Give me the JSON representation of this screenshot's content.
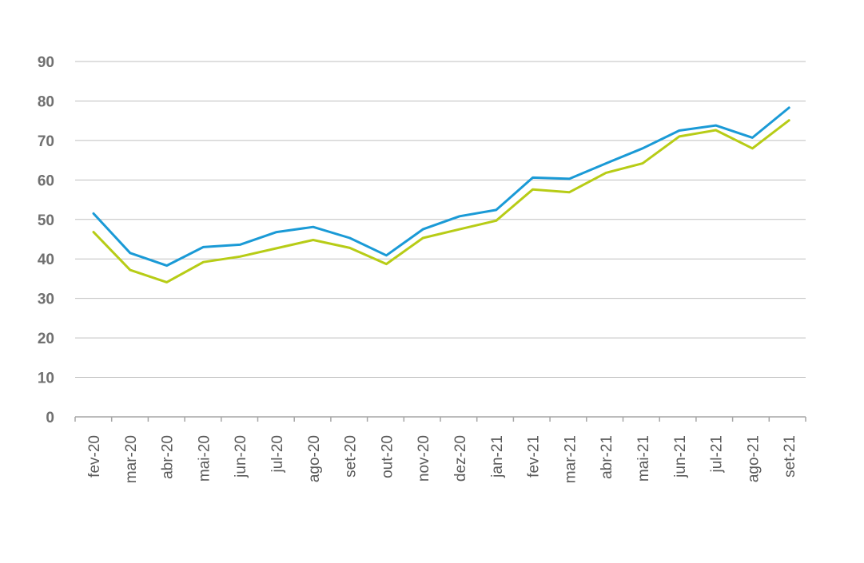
{
  "chart_data": {
    "type": "line",
    "title": "",
    "xlabel": "",
    "ylabel": "",
    "ylim": [
      0,
      90
    ],
    "yticks": [
      0,
      10,
      20,
      30,
      40,
      50,
      60,
      70,
      80,
      90
    ],
    "grid": true,
    "legend": "none",
    "categories": [
      "fev-20",
      "mar-20",
      "abr-20",
      "mai-20",
      "jun-20",
      "jul-20",
      "ago-20",
      "set-20",
      "out-20",
      "nov-20",
      "dez-20",
      "jan-21",
      "fev-21",
      "mar-21",
      "abr-21",
      "mai-21",
      "jun-21",
      "jul-21",
      "ago-21",
      "set-21"
    ],
    "series": [
      {
        "color": "#1a9ad6",
        "values": [
          51.5,
          41.5,
          38.3,
          43.0,
          43.6,
          46.8,
          48.1,
          45.3,
          40.9,
          47.5,
          50.8,
          52.4,
          60.6,
          60.3,
          64.2,
          68.0,
          72.5,
          73.8,
          70.7,
          78.3
        ]
      },
      {
        "color": "#b7cc16",
        "values": [
          46.8,
          37.2,
          34.1,
          39.2,
          40.6,
          42.7,
          44.8,
          42.8,
          38.7,
          45.3,
          47.5,
          49.7,
          57.6,
          56.9,
          61.8,
          64.2,
          71.0,
          72.6,
          68.0,
          75.1
        ]
      }
    ]
  }
}
